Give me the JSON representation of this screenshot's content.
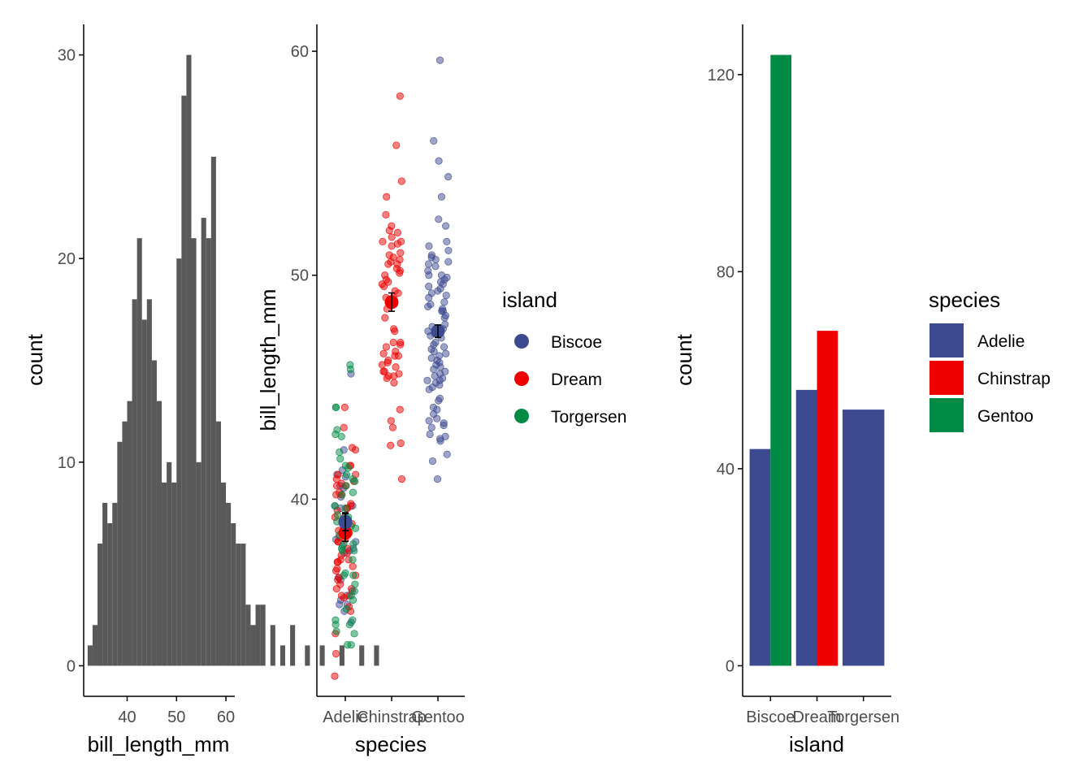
{
  "colors": {
    "blue": "#3c4a8f",
    "red": "#ee0000",
    "green": "#008b45",
    "hist": "#595959",
    "axis": "#000000",
    "tick_text": "#4d4d4d"
  },
  "chart_data": [
    {
      "type": "bar",
      "subtype": "histogram",
      "xlabel": "bill_length_mm",
      "ylabel": "count",
      "xlim": [
        31.2,
        61.8
      ],
      "ylim": [
        -1.5,
        31.5
      ],
      "x_ticks": [
        "40",
        "50",
        "60"
      ],
      "y_ticks": [
        "0",
        "10",
        "20",
        "30"
      ],
      "bin_start": 32,
      "bin_width": 1,
      "counts": [
        1,
        2,
        6,
        8,
        7,
        8,
        11,
        12,
        13,
        18,
        21,
        17,
        18,
        15,
        13,
        9,
        10,
        9,
        20,
        28,
        30,
        21,
        10,
        22,
        21,
        25,
        12,
        9,
        8,
        7,
        6,
        6,
        3,
        2,
        3,
        3,
        0,
        2,
        0,
        1,
        0,
        2,
        0,
        0,
        1,
        0,
        0,
        1,
        0,
        0,
        0,
        1,
        0,
        0,
        0,
        1,
        0,
        0,
        1,
        0
      ]
    },
    {
      "type": "scatter",
      "xlabel": "species",
      "ylabel": "bill_length_mm",
      "categories": [
        "Adelie",
        "Chinstrap",
        "Gentoo"
      ],
      "ylim": [
        31.2,
        61.2
      ],
      "y_ticks": [
        "40",
        "50",
        "60"
      ],
      "legend": {
        "title": "island",
        "position": "right",
        "items": [
          "Biscoe",
          "Dream",
          "Torgersen"
        ]
      },
      "means": [
        {
          "category": "Adelie",
          "island": "Dream",
          "mean": 38.5,
          "se": 0.38
        },
        {
          "category": "Adelie",
          "island": "Torgersen",
          "mean": 39.0,
          "se": 0.4
        },
        {
          "category": "Adelie",
          "island": "Biscoe",
          "mean": 38.97,
          "se": 0.38
        },
        {
          "category": "Chinstrap",
          "island": "Dream",
          "mean": 48.8,
          "se": 0.41
        },
        {
          "category": "Gentoo",
          "island": "Biscoe",
          "mean": 47.5,
          "se": 0.28
        }
      ],
      "series": [
        {
          "name": "Biscoe",
          "category": "Gentoo",
          "values": [
            59.6,
            56.0,
            55.1,
            54.4,
            53.5,
            52.5,
            52.2,
            51.5,
            51.3,
            51.1,
            50.9,
            50.8,
            50.6,
            50.5,
            50.4,
            50.2,
            50.0,
            50.0,
            49.9,
            49.8,
            49.6,
            49.5,
            49.4,
            49.3,
            49.2,
            49.1,
            49.0,
            48.8,
            48.7,
            48.6,
            48.5,
            48.4,
            48.2,
            48.1,
            47.8,
            47.6,
            47.5,
            47.4,
            47.3,
            47.2,
            47.0,
            46.9,
            46.8,
            46.6,
            46.5,
            46.4,
            46.3,
            46.2,
            46.1,
            46.0,
            45.8,
            45.7,
            45.6,
            45.5,
            45.4,
            45.3,
            45.2,
            45.1,
            45.0,
            44.9,
            44.5,
            44.4,
            44.0,
            43.8,
            43.6,
            43.5,
            43.3,
            43.2,
            42.9,
            42.8,
            42.7,
            42.6,
            42.0,
            41.7,
            40.9,
            50.7,
            49.7,
            48.4,
            47.7,
            46.7,
            45.9,
            45.3,
            44.1,
            43.4
          ]
        },
        {
          "name": "Biscoe",
          "category": "Adelie",
          "values": [
            45.6,
            42.2,
            41.3,
            41.0,
            40.6,
            40.1,
            39.7,
            39.6,
            38.8,
            38.2,
            37.8,
            37.7,
            37.6,
            36.5,
            35.9,
            35.5,
            35.3,
            35.0,
            34.5,
            37.9,
            39.7,
            40.5,
            41.1,
            38.1,
            36.4,
            35.7,
            35.3
          ]
        },
        {
          "name": "Dream",
          "category": "Chinstrap",
          "values": [
            58.0,
            55.8,
            54.2,
            53.5,
            52.7,
            52.2,
            52.0,
            51.9,
            51.7,
            51.5,
            51.4,
            51.3,
            51.0,
            50.9,
            50.8,
            50.7,
            50.6,
            50.5,
            50.3,
            50.2,
            50.1,
            50.0,
            49.8,
            49.7,
            49.6,
            49.5,
            49.3,
            49.2,
            49.0,
            48.8,
            48.5,
            48.1,
            47.6,
            47.5,
            47.0,
            46.9,
            46.8,
            46.6,
            46.5,
            46.4,
            46.2,
            46.1,
            45.9,
            45.7,
            45.6,
            45.5,
            45.4,
            45.2,
            43.5,
            43.2,
            42.5,
            42.4,
            40.9,
            51.5,
            49.0,
            46.4,
            45.7,
            45.5,
            50.5,
            47.0,
            46.0,
            44.0
          ]
        },
        {
          "name": "Dream",
          "category": "Adelie",
          "values": [
            44.1,
            43.2,
            42.3,
            41.5,
            41.1,
            40.8,
            40.7,
            40.6,
            40.3,
            40.2,
            39.8,
            39.7,
            39.6,
            39.2,
            39.0,
            38.9,
            38.8,
            38.6,
            38.3,
            38.1,
            37.8,
            37.6,
            37.5,
            37.3,
            37.2,
            37.0,
            36.9,
            36.6,
            36.4,
            36.2,
            36.0,
            35.7,
            35.6,
            35.2,
            34.0,
            33.1,
            32.1,
            39.5,
            38.9,
            36.8,
            41.1,
            40.2,
            37.2,
            36.5,
            35.7,
            39.2,
            40.6,
            42.2,
            41.5,
            39.6,
            38.1,
            37.3,
            36.0,
            35.0,
            38.2,
            40.9
          ]
        },
        {
          "name": "Torgersen",
          "category": "Adelie",
          "values": [
            46.0,
            45.8,
            44.1,
            43.1,
            42.8,
            42.1,
            41.8,
            41.4,
            41.1,
            40.9,
            40.6,
            40.3,
            39.6,
            39.3,
            39.2,
            39.1,
            38.9,
            38.8,
            38.7,
            38.6,
            38.5,
            38.0,
            37.8,
            37.7,
            36.7,
            36.6,
            36.2,
            35.9,
            35.5,
            35.1,
            34.6,
            34.4,
            34.1,
            33.5,
            42.9,
            40.8,
            39.7,
            37.3,
            34.6,
            34.4,
            36.6,
            39.0,
            41.5,
            44.1,
            40.2,
            38.4,
            38.0,
            35.7,
            33.5,
            34.0,
            37.7
          ]
        }
      ]
    },
    {
      "type": "bar",
      "subtype": "dodged",
      "xlabel": "island",
      "ylabel": "count",
      "categories": [
        "Biscoe",
        "Dream",
        "Torgersen"
      ],
      "ylim": [
        -6.2,
        130.2
      ],
      "y_ticks": [
        "0",
        "40",
        "80",
        "120"
      ],
      "legend": {
        "title": "species",
        "position": "right",
        "items": [
          "Adelie",
          "Chinstrap",
          "Gentoo"
        ]
      },
      "series": [
        {
          "name": "Adelie",
          "values": [
            44,
            56,
            52
          ]
        },
        {
          "name": "Chinstrap",
          "values": [
            0,
            68,
            0
          ]
        },
        {
          "name": "Gentoo",
          "values": [
            124,
            0,
            0
          ]
        }
      ]
    }
  ]
}
